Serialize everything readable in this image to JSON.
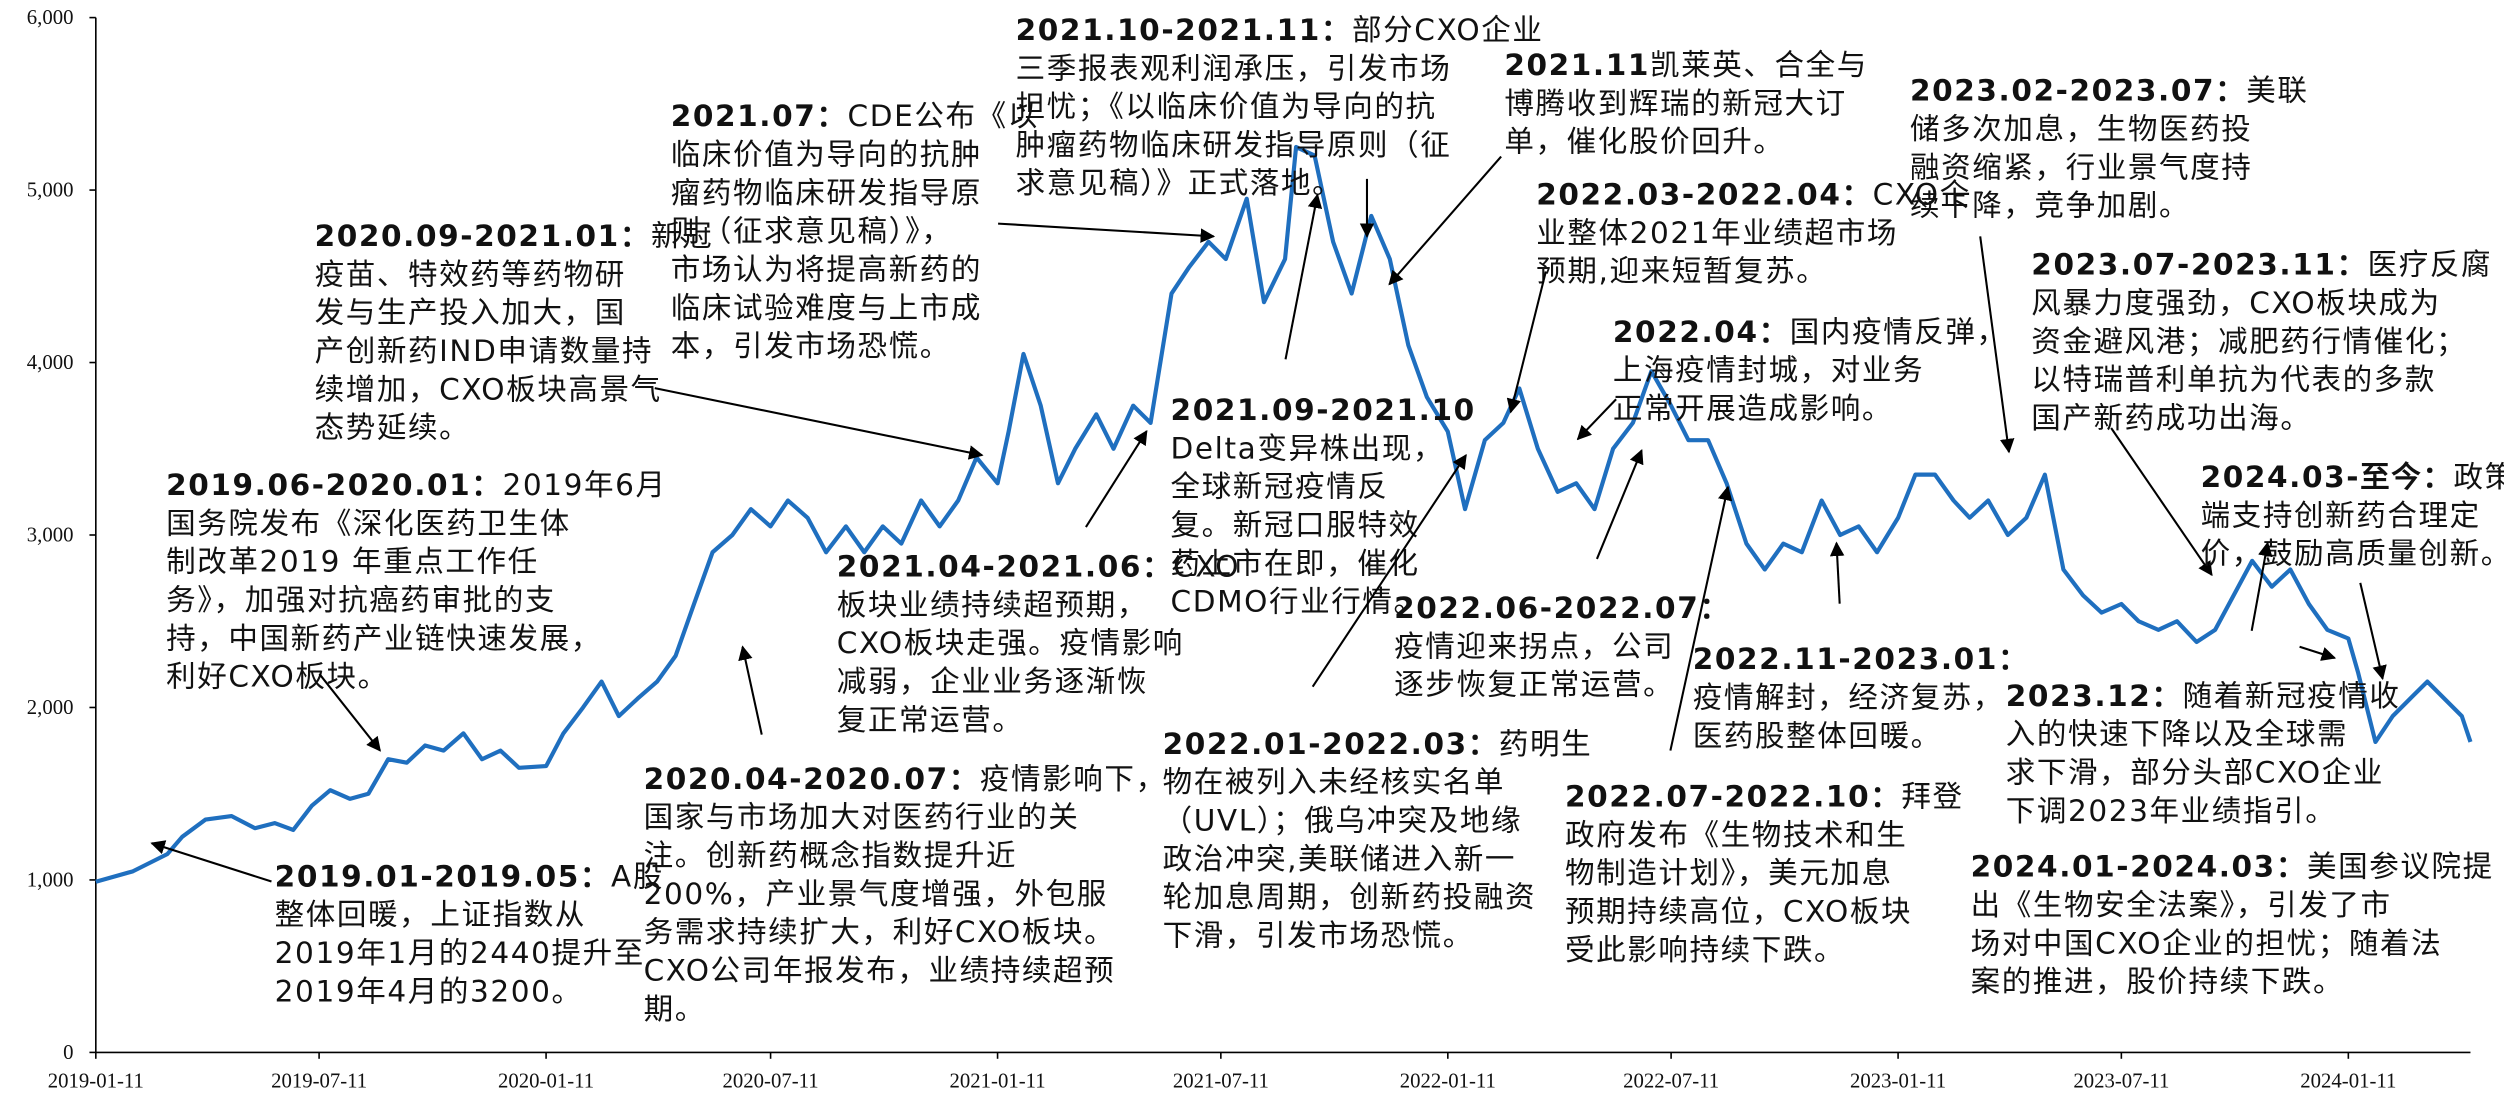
{
  "chart_data": {
    "type": "line",
    "color": "#1f6fbf",
    "xlim": [
      "2019-01-11",
      "2024-04-19"
    ],
    "xticks": [
      "2019-01-11",
      "2019-07-11",
      "2020-01-11",
      "2020-07-11",
      "2021-01-11",
      "2021-07-11",
      "2022-01-11",
      "2022-07-11",
      "2023-01-11",
      "2023-07-11",
      "2024-01-11"
    ],
    "ylim": [
      0,
      6000
    ],
    "yticks": [
      0,
      {
        "value": 1000,
        "label": "1,000"
      },
      {
        "value": 2000,
        "label": "2,000"
      },
      {
        "value": 3000,
        "label": "3,000"
      },
      {
        "value": 4000,
        "label": "4,000"
      },
      {
        "value": 5000,
        "label": "5,000"
      },
      {
        "value": 6000,
        "label": "6,000"
      }
    ],
    "x": [
      "2019-01-11",
      "2019-02-10",
      "2019-03-10",
      "2019-03-22",
      "2019-04-10",
      "2019-05-01",
      "2019-05-20",
      "2019-06-05",
      "2019-06-20",
      "2019-07-05",
      "2019-07-20",
      "2019-08-05",
      "2019-08-20",
      "2019-09-05",
      "2019-09-20",
      "2019-10-05",
      "2019-10-20",
      "2019-11-05",
      "2019-11-20",
      "2019-12-05",
      "2019-12-20",
      "2020-01-11",
      "2020-01-25",
      "2020-02-10",
      "2020-02-25",
      "2020-03-10",
      "2020-03-25",
      "2020-04-10",
      "2020-04-25",
      "2020-05-10",
      "2020-05-25",
      "2020-06-10",
      "2020-06-25",
      "2020-07-11",
      "2020-07-25",
      "2020-08-10",
      "2020-08-25",
      "2020-09-10",
      "2020-09-25",
      "2020-10-10",
      "2020-10-25",
      "2020-11-10",
      "2020-11-25",
      "2020-12-10",
      "2020-12-25",
      "2021-01-11",
      "2021-01-20",
      "2021-02-01",
      "2021-02-15",
      "2021-03-01",
      "2021-03-15",
      "2021-04-01",
      "2021-04-15",
      "2021-05-01",
      "2021-05-15",
      "2021-06-01",
      "2021-06-15",
      "2021-07-01",
      "2021-07-15",
      "2021-08-01",
      "2021-08-15",
      "2021-09-01",
      "2021-09-10",
      "2021-09-25",
      "2021-10-10",
      "2021-10-25",
      "2021-11-10",
      "2021-11-25",
      "2021-12-10",
      "2021-12-25",
      "2022-01-11",
      "2022-01-25",
      "2022-02-10",
      "2022-02-25",
      "2022-03-10",
      "2022-03-25",
      "2022-04-10",
      "2022-04-25",
      "2022-05-10",
      "2022-05-25",
      "2022-06-10",
      "2022-06-25",
      "2022-07-11",
      "2022-07-25",
      "2022-08-10",
      "2022-08-25",
      "2022-09-10",
      "2022-09-25",
      "2022-10-10",
      "2022-10-25",
      "2022-11-10",
      "2022-11-25",
      "2022-12-10",
      "2022-12-25",
      "2023-01-11",
      "2023-01-25",
      "2023-02-10",
      "2023-02-25",
      "2023-03-10",
      "2023-03-25",
      "2023-04-10",
      "2023-04-25",
      "2023-05-10",
      "2023-05-25",
      "2023-06-10",
      "2023-06-25",
      "2023-07-11",
      "2023-07-25",
      "2023-08-10",
      "2023-08-25",
      "2023-09-10",
      "2023-09-25",
      "2023-10-10",
      "2023-10-25",
      "2023-11-10",
      "2023-11-25",
      "2023-12-10",
      "2023-12-25",
      "2024-01-11",
      "2024-01-19",
      "2024-02-02",
      "2024-02-16",
      "2024-03-01",
      "2024-03-15",
      "2024-03-29",
      "2024-04-12",
      "2024-04-19"
    ],
    "values": [
      990,
      1050,
      1150,
      1250,
      1350,
      1370,
      1300,
      1330,
      1290,
      1430,
      1520,
      1470,
      1500,
      1700,
      1680,
      1780,
      1750,
      1850,
      1700,
      1750,
      1650,
      1660,
      1850,
      2000,
      2150,
      1950,
      2050,
      2150,
      2300,
      2600,
      2900,
      3000,
      3150,
      3050,
      3200,
      3100,
      2900,
      3050,
      2900,
      3050,
      2950,
      3200,
      3050,
      3200,
      3450,
      3300,
      3600,
      4050,
      3750,
      3300,
      3500,
      3700,
      3500,
      3750,
      3650,
      4400,
      4550,
      4700,
      4600,
      4950,
      4350,
      4600,
      5250,
      5200,
      4700,
      4400,
      4850,
      4600,
      4100,
      3800,
      3600,
      3150,
      3550,
      3650,
      3850,
      3500,
      3250,
      3300,
      3150,
      3500,
      3650,
      3950,
      3750,
      3550,
      3550,
      3300,
      2950,
      2800,
      2950,
      2900,
      3200,
      3000,
      3050,
      2900,
      3100,
      3350,
      3350,
      3200,
      3100,
      3200,
      3000,
      3100,
      3350,
      2800,
      2650,
      2550,
      2600,
      2500,
      2450,
      2500,
      2380,
      2450,
      2650,
      2850,
      2700,
      2800,
      2600,
      2450,
      2400,
      2200,
      1800,
      1950,
      2050,
      2150,
      2050,
      1950,
      1800
    ],
    "annotations": [
      {
        "head": "2019.01-2019.05：",
        "lines": [
          "A股",
          "整体回暖，上证指数从",
          "2019年1月的2440提升至",
          "2019年4月的3200。"
        ]
      },
      {
        "head": "2019.06-2020.01：",
        "lines": [
          "2019年6月",
          "国务院发布《深化医药卫生体",
          "制改革2019 年重点工作任",
          "务》，加强对抗癌药审批的支",
          "持，中国新药产业链快速发展，",
          "利好CXO板块。"
        ]
      },
      {
        "head": "2020.09-2021.01：",
        "lines": [
          "新冠",
          "疫苗、特效药等药物研",
          "发与生产投入加大，国",
          "产创新药IND申请数量持",
          "续增加，CXO板块高景气",
          "态势延续。"
        ]
      },
      {
        "head": "2021.07：",
        "lines": [
          "CDE公布《以",
          "临床价值为导向的抗肿",
          "瘤药物临床研发指导原",
          "则（征求意见稿）》，",
          "市场认为将提高新药的",
          "临床试验难度与上市成",
          "本，引发市场恐慌。"
        ]
      },
      {
        "head": "2021.10-2021.11：",
        "lines": [
          "部分CXO企业",
          "三季报表观利润承压，引发市场",
          "担忧；《以临床价值为导向的抗",
          "肿瘤药物临床研发指导原则（征",
          "求意见稿）》正式落地。"
        ]
      },
      {
        "head": "2021.11",
        "lines": [
          "凯莱英、合全与",
          "博腾收到辉瑞的新冠大订",
          "单，催化股价回升。"
        ]
      },
      {
        "head": "2022.03-2022.04：",
        "lines": [
          "CXO企",
          "业整体2021年业绩超市场",
          "预期,迎来短暂复苏。"
        ]
      },
      {
        "head": "2022.04：",
        "lines": [
          "国内疫情反弹，",
          "上海疫情封城，对业务",
          "正常开展造成影响。"
        ]
      },
      {
        "head": "2021.09-2021.10",
        "lines": [
          "Delta变异株出现，",
          "全球新冠疫情反",
          "复。新冠口服特效",
          "药上市在即，催化",
          "CDMO行业行情。"
        ]
      },
      {
        "head": "2021.04-2021.06：",
        "lines": [
          "CXO",
          "板块业绩持续超预期，",
          "CXO板块走强。疫情影响",
          "减弱，企业业务逐渐恢",
          "复正常运营。"
        ]
      },
      {
        "head": "2020.04-2020.07：",
        "lines": [
          "疫情影响下，",
          "国家与市场加大对医药行业的关",
          "注。创新药概念指数提升近",
          "200%，产业景气度增强，外包服",
          "务需求持续扩大，利好CXO板块。",
          "CXO公司年报发布，业绩持续超预",
          "期。"
        ]
      },
      {
        "head": "2022.01-2022.03：",
        "lines": [
          "药明生",
          "物在被列入未经核实名单",
          "（UVL）；俄乌冲突及地缘",
          "政治冲突,美联储进入新一",
          "轮加息周期，创新药投融资",
          "下滑，引发市场恐慌。"
        ]
      },
      {
        "head": "2022.06-2022.07：",
        "lines": [
          "疫情迎来拐点，公司",
          "逐步恢复正常运营。"
        ]
      },
      {
        "head": "2022.11-2023.01：",
        "lines": [
          "疫情解封，经济复苏，",
          "医药股整体回暖。"
        ]
      },
      {
        "head": "2022.07-2022.10：",
        "lines": [
          "拜登",
          "政府发布《生物技术和生",
          "物制造计划》，美元加息",
          "预期持续高位，CXO板块",
          "受此影响持续下跌。"
        ]
      },
      {
        "head": "2023.02-2023.07：",
        "lines": [
          "美联",
          "储多次加息，生物医药投",
          "融资缩紧，行业景气度持",
          "续下降，竞争加剧。"
        ]
      },
      {
        "head": "2023.07-2023.11：",
        "lines": [
          "医疗反腐",
          "风暴力度强劲，CXO板块成为",
          "资金避风港；减肥药行情催化；",
          "以特瑞普利单抗为代表的多款",
          "国产新药成功出海。"
        ]
      },
      {
        "head": "2024.03-至今：",
        "lines": [
          "政策",
          "端支持创新药合理定",
          "价，鼓励高质量创新。"
        ]
      },
      {
        "head": "2023.12：",
        "lines": [
          "随着新冠疫情收",
          "入的快速下降以及全球需",
          "求下滑，部分头部CXO企业",
          "下调2023年业绩指引。"
        ]
      },
      {
        "head": "2024.01-2024.03：",
        "lines": [
          "美国参议院提",
          "出《生物安全法案》，引发了市",
          "场对中国CXO企业的担忧；随着法",
          "案的推进，股价持续下跌。"
        ]
      }
    ]
  }
}
